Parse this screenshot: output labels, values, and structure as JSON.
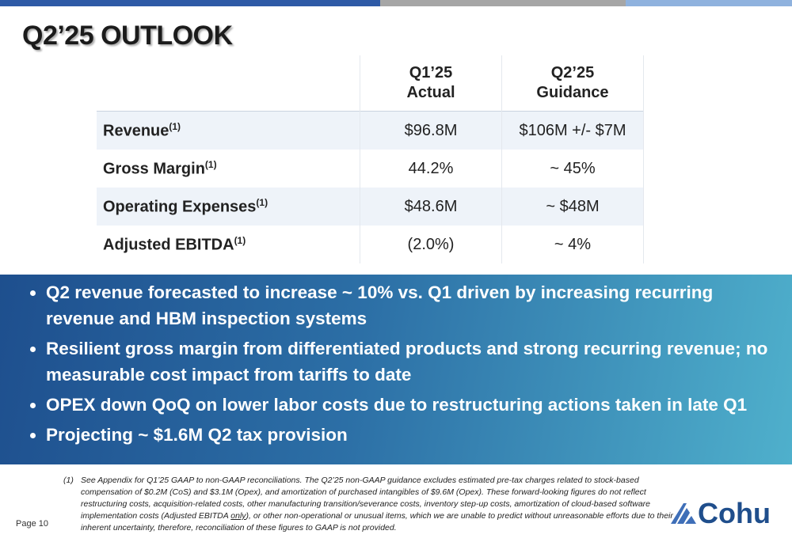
{
  "header": {
    "title": "Q2’25 OUTLOOK"
  },
  "table": {
    "columns": [
      [
        "Q1’25",
        "Actual"
      ],
      [
        "Q2’25",
        "Guidance"
      ]
    ],
    "rows": [
      {
        "label": "Revenue",
        "note": "(1)",
        "actual": "$96.8M",
        "guidance": "$106M +/- $7M"
      },
      {
        "label": "Gross Margin",
        "note": "(1)",
        "actual": "44.2%",
        "guidance": "~ 45%"
      },
      {
        "label": "Operating Expenses",
        "note": "(1)",
        "actual": "$48.6M",
        "guidance": "~ $48M"
      },
      {
        "label": "Adjusted EBITDA",
        "note": "(1)",
        "actual": "(2.0%)",
        "guidance": "~ 4%"
      }
    ]
  },
  "bullets": [
    "Q2 revenue forecasted to increase ~ 10% vs. Q1 driven by increasing recurring revenue and HBM inspection systems",
    "Resilient gross margin from differentiated products and strong recurring revenue; no measurable cost impact from tariffs to date",
    "OPEX down QoQ on lower labor costs due to restructuring actions taken in late Q1",
    "Projecting ~ $1.6M Q2 tax provision"
  ],
  "footnote": {
    "marker": "(1)",
    "text_before": "See Appendix for Q1’25 GAAP to non-GAAP reconciliations. The Q2’25 non-GAAP guidance excludes estimated pre-tax charges related to stock-based compensation of $0.2M (CoS) and $3.1M (Opex), and amortization of purchased intangibles of $9.6M (Opex). These forward-looking figures do not reflect restructuring costs, acquisition-related costs, other manufacturing transition/severance costs, inventory step-up costs, amortization of cloud-based software implementation costs (Adjusted EBITDA ",
    "text_underlined": "only",
    "text_after": "), or other non-operational or unusual items, which we are unable to predict without unreasonable efforts due to their inherent uncertainty, therefore, reconciliation of these figures to GAAP is not provided."
  },
  "footer": {
    "page": "Page 10",
    "logo": "Cohu"
  }
}
